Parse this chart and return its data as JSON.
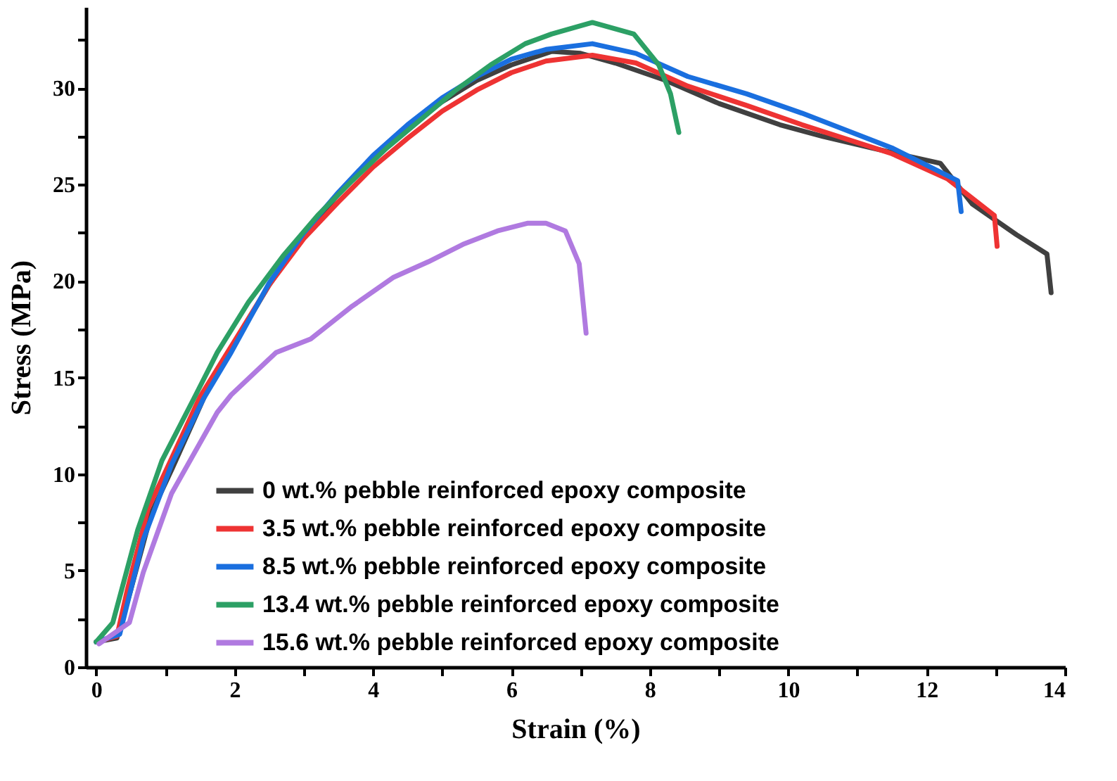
{
  "chart_data": {
    "type": "line",
    "xlabel": "Strain (%)",
    "ylabel": "Stress (MPa)",
    "xlim": [
      -0.15,
      14
    ],
    "ylim": [
      0,
      34.2
    ],
    "xticks": [
      0,
      {
        "value": 1,
        "label": null
      },
      2,
      {
        "value": 3,
        "label": null
      },
      4,
      {
        "value": 5,
        "label": null
      },
      6,
      {
        "value": 7,
        "label": null
      },
      8,
      {
        "value": 9,
        "label": null
      },
      10,
      {
        "value": 11,
        "label": null
      },
      12,
      {
        "value": 13,
        "label": null
      },
      14
    ],
    "yticks": [
      0,
      {
        "value": 2.5,
        "label": null
      },
      5,
      {
        "value": 7.5,
        "label": null
      },
      10,
      {
        "value": 12.5,
        "label": null
      },
      15,
      {
        "value": 17.5,
        "label": null
      },
      20,
      {
        "value": 22.5,
        "label": null
      },
      25,
      {
        "value": 27.5,
        "label": null
      },
      30,
      {
        "value": 32.5,
        "label": null
      }
    ],
    "grid": false,
    "legend": "bottom",
    "marker": "none",
    "line_style": "solid",
    "series": [
      {
        "name": "0 wt.% pebble reinforced epoxy composite",
        "color": "#404040",
        "x": [
          0,
          0.3,
          0.5,
          0.8,
          1.1,
          1.6,
          2.0,
          2.5,
          3.0,
          3.5,
          4.0,
          4.5,
          5.0,
          5.5,
          6.0,
          6.58,
          7.0,
          7.5,
          8.23,
          9.0,
          9.88,
          10.5,
          11.2,
          12.2,
          12.66,
          13.3,
          13.74,
          13.8
        ],
        "values": [
          1.3,
          1.5,
          4.0,
          8.0,
          10.3,
          14.3,
          16.8,
          19.8,
          22.4,
          24.5,
          26.4,
          28.0,
          29.3,
          30.4,
          31.2,
          31.9,
          31.8,
          31.3,
          30.4,
          29.2,
          28.1,
          27.5,
          26.9,
          26.1,
          24.0,
          22.4,
          21.4,
          19.4
        ]
      },
      {
        "name": "3.5 wt.% pebble reinforced epoxy composite",
        "color": "#ee3333",
        "x": [
          0,
          0.3,
          0.45,
          0.75,
          1.05,
          1.5,
          2.0,
          2.5,
          3.0,
          3.5,
          4.0,
          4.5,
          5.0,
          5.5,
          6.0,
          6.5,
          7.17,
          7.8,
          8.55,
          9.4,
          10.2,
          11.5,
          12.3,
          12.98,
          13.02
        ],
        "values": [
          1.3,
          1.6,
          4.0,
          8.2,
          10.5,
          14.0,
          16.9,
          19.8,
          22.2,
          24.1,
          25.9,
          27.4,
          28.8,
          29.9,
          30.8,
          31.4,
          31.7,
          31.3,
          30.1,
          29.1,
          28.1,
          26.6,
          25.3,
          23.4,
          21.8
        ]
      },
      {
        "name": "8.5 wt.% pebble reinforced epoxy composite",
        "color": "#1a6fdf",
        "x": [
          0,
          0.34,
          0.68,
          1.09,
          1.55,
          1.95,
          2.5,
          3.0,
          3.5,
          4.0,
          4.5,
          5.0,
          5.5,
          6.0,
          6.5,
          7.17,
          7.8,
          8.55,
          9.4,
          10.2,
          11.5,
          12.45,
          12.5
        ],
        "values": [
          1.3,
          1.7,
          6.6,
          10.5,
          13.9,
          16.3,
          19.9,
          22.5,
          24.6,
          26.5,
          28.1,
          29.5,
          30.6,
          31.5,
          32.0,
          32.3,
          31.8,
          30.6,
          29.7,
          28.7,
          26.9,
          25.2,
          23.6
        ]
      },
      {
        "name": "13.4 wt.% pebble reinforced epoxy composite",
        "color": "#2ca065",
        "x": [
          0,
          0.24,
          0.6,
          0.95,
          1.41,
          1.75,
          2.2,
          2.7,
          3.2,
          3.7,
          4.2,
          4.7,
          5.2,
          5.7,
          6.2,
          6.58,
          7.17,
          7.77,
          8.13,
          8.3,
          8.42
        ],
        "values": [
          1.3,
          2.3,
          7.1,
          10.7,
          13.9,
          16.3,
          18.9,
          21.3,
          23.4,
          25.2,
          26.9,
          28.4,
          29.9,
          31.2,
          32.3,
          32.8,
          33.4,
          32.8,
          31.2,
          29.7,
          27.7
        ]
      },
      {
        "name": "15.6 wt.% pebble reinforced epoxy composite",
        "color": "#b07ae0",
        "x": [
          0.04,
          0.48,
          0.68,
          1.09,
          1.75,
          1.95,
          2.6,
          3.1,
          3.7,
          4.3,
          4.8,
          5.3,
          5.8,
          6.24,
          6.5,
          6.78,
          6.98,
          7.08
        ],
        "values": [
          1.2,
          2.3,
          4.9,
          9.0,
          13.2,
          14.1,
          16.3,
          17.0,
          18.7,
          20.2,
          21.0,
          21.9,
          22.6,
          23.0,
          23.0,
          22.6,
          20.9,
          17.3
        ]
      }
    ]
  }
}
